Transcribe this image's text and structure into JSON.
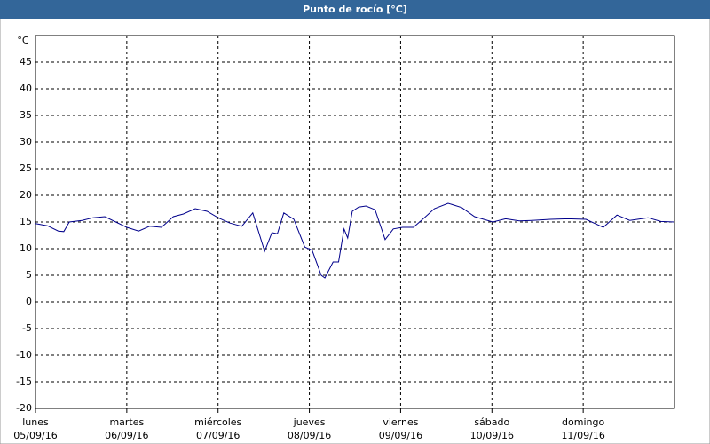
{
  "chart_data": {
    "type": "line",
    "title": "Punto de rocío [°C]",
    "y_unit": "°C",
    "xlim": [
      0,
      7
    ],
    "xticks": [
      {
        "value": 0,
        "label": "lunes",
        "sublabel": "05/09/16"
      },
      {
        "value": 1,
        "label": "martes",
        "sublabel": "06/09/16"
      },
      {
        "value": 2,
        "label": "miércoles",
        "sublabel": "07/09/16"
      },
      {
        "value": 3,
        "label": "jueves",
        "sublabel": "08/09/16"
      },
      {
        "value": 4,
        "label": "viernes",
        "sublabel": "09/09/16"
      },
      {
        "value": 5,
        "label": "sábado",
        "sublabel": "10/09/16"
      },
      {
        "value": 6,
        "label": "domingo",
        "sublabel": "11/09/16"
      }
    ],
    "ylim": [
      -20,
      50
    ],
    "yticks": [
      -20,
      -15,
      -10,
      -5,
      0,
      5,
      10,
      15,
      20,
      25,
      30,
      35,
      40,
      45
    ],
    "grid": true,
    "series": [
      {
        "color": "#00008b",
        "x": [
          0,
          0.13,
          0.25,
          0.31,
          0.37,
          0.51,
          0.63,
          0.76,
          0.88,
          1.0,
          1.13,
          1.25,
          1.38,
          1.51,
          1.62,
          1.75,
          1.88,
          2.0,
          2.13,
          2.26,
          2.38,
          2.51,
          2.59,
          2.65,
          2.72,
          2.83,
          2.95,
          3.03,
          3.13,
          3.17,
          3.26,
          3.32,
          3.38,
          3.42,
          3.47,
          3.54,
          3.62,
          3.72,
          3.83,
          3.92,
          4.02,
          4.14,
          4.26,
          4.37,
          4.52,
          4.67,
          4.81,
          5.01,
          5.15,
          5.3,
          5.44,
          5.64,
          5.83,
          6.03,
          6.22,
          6.37,
          6.51,
          6.71,
          6.85,
          7.0
        ],
        "values": [
          14.7,
          14.3,
          13.3,
          13.2,
          15,
          15.3,
          15.8,
          16,
          15,
          14,
          13.3,
          14.2,
          14,
          16,
          16.5,
          17.5,
          17,
          15.8,
          14.8,
          14.2,
          16.7,
          9.5,
          13,
          12.8,
          16.7,
          15.5,
          10.3,
          9.7,
          5,
          4.5,
          7.5,
          7.5,
          13.7,
          12,
          17,
          17.8,
          18,
          17.3,
          11.7,
          13.7,
          14,
          14,
          15.8,
          17.5,
          18.5,
          17.7,
          16,
          15,
          15.6,
          15.2,
          15.3,
          15.5,
          15.6,
          15.5,
          14,
          16.3,
          15.3,
          15.8,
          15.1,
          15
        ]
      }
    ]
  }
}
